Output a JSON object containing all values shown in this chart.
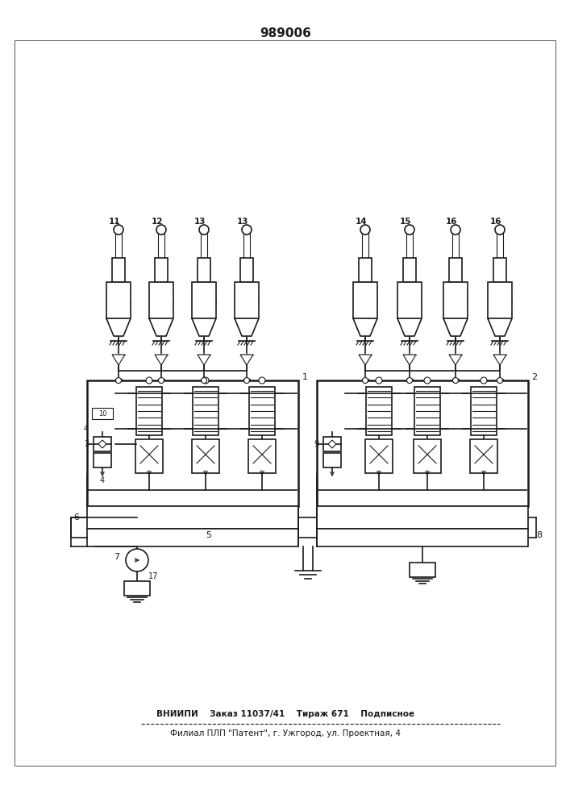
{
  "title": "989006",
  "footer_line1": "ВНИИПИ    Заказ 11037/41    Тираж 671    Подписное",
  "footer_line2": "Филиал ПЛП \"Патент\", г. Ужгород, ул. Проектная, 4",
  "bg_color": "#ffffff",
  "lc": "#1a1a1a",
  "acc_labels_left": [
    "11",
    "12",
    "13",
    "13"
  ],
  "acc_labels_right": [
    "14",
    "15",
    "16",
    "16"
  ],
  "label_1": "1",
  "label_2": "2",
  "label_3": "3",
  "label_4": "4",
  "label_5": "5",
  "label_6": "6",
  "label_7": "7",
  "label_8": "8",
  "label_9": "9",
  "label_17": "17"
}
